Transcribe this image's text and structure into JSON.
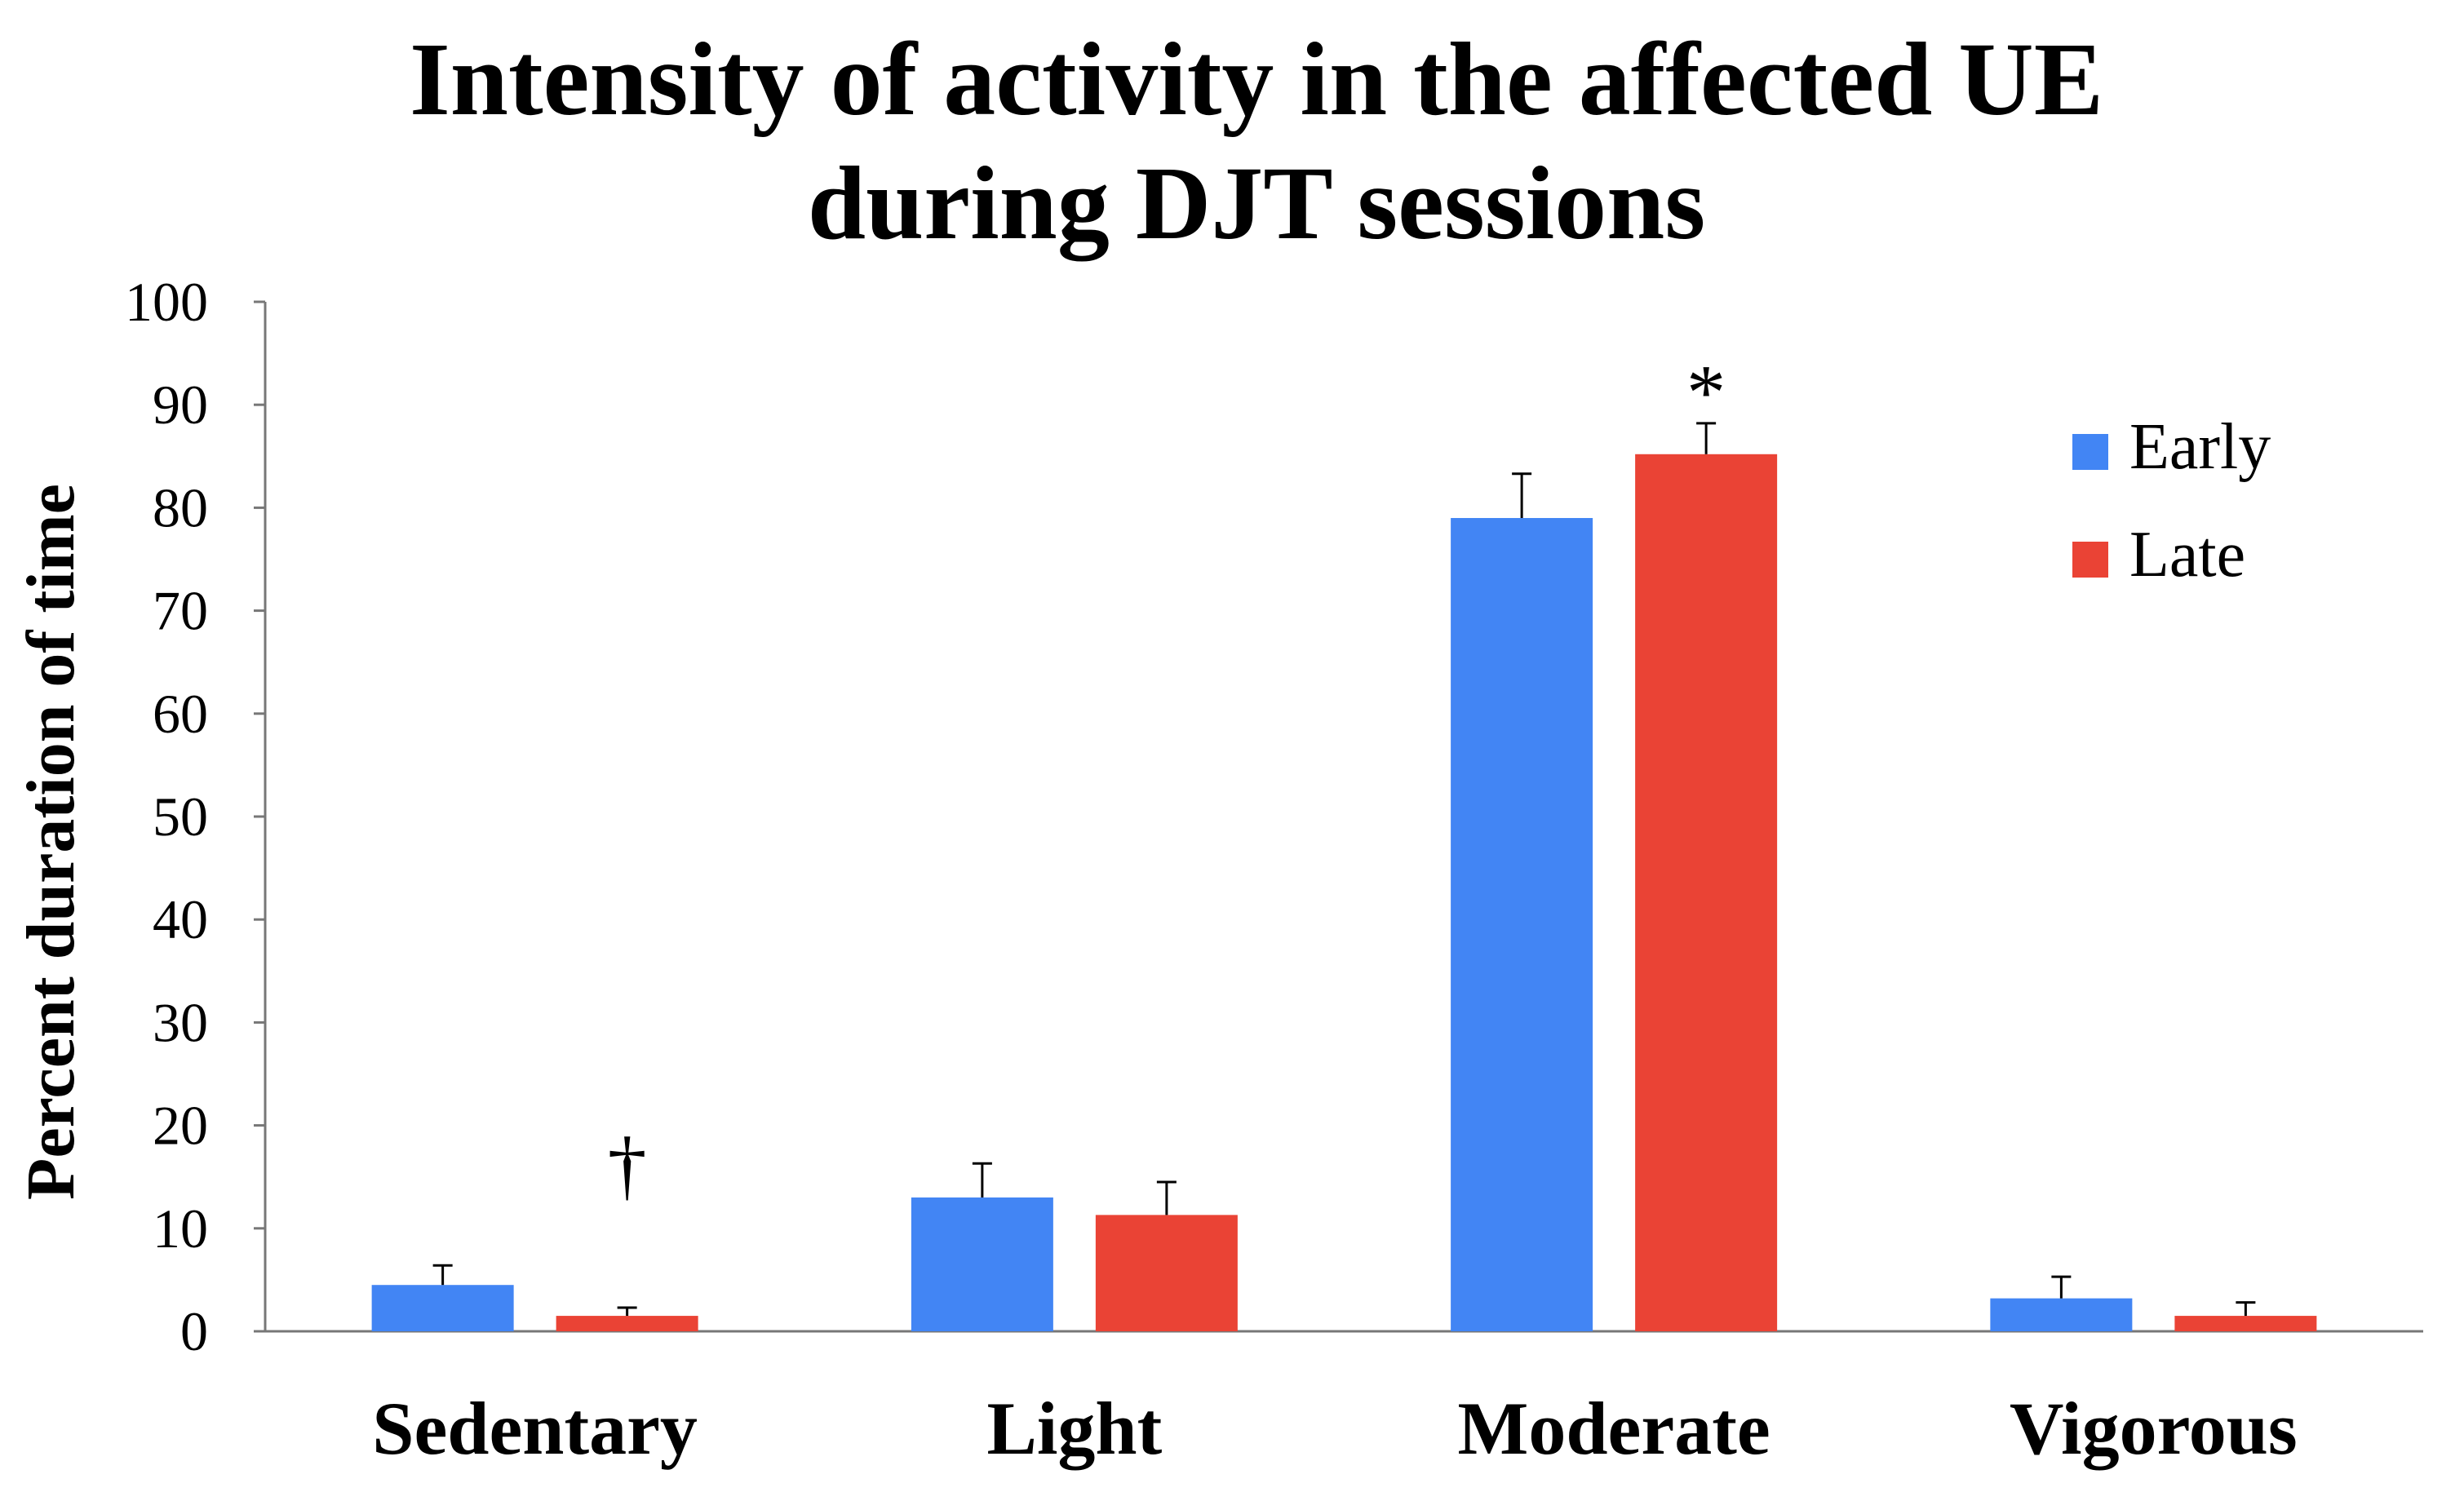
{
  "chart_data": {
    "type": "bar",
    "title": [
      "Intensity of activity in the affected UE",
      "during DJT sessions"
    ],
    "xlabel": "",
    "ylabel": "Percent duration of time",
    "ylim": [
      0,
      100
    ],
    "yticks": [
      0,
      10,
      20,
      30,
      40,
      50,
      60,
      70,
      80,
      90,
      100
    ],
    "categories": [
      "Sedentary",
      "Light",
      "Moderate",
      "Vigorous"
    ],
    "series": [
      {
        "name": "Early",
        "color": "#4285F4",
        "values": [
          4.5,
          13,
          79,
          3.2
        ],
        "errors": [
          1.9,
          3.3,
          4.3,
          2.1
        ]
      },
      {
        "name": "Late",
        "color": "#EA4335",
        "values": [
          1.5,
          11.3,
          85.2,
          1.5
        ],
        "errors": [
          0.8,
          3.2,
          3.0,
          1.3
        ]
      }
    ],
    "legend": {
      "position": "right",
      "entries": [
        "Early",
        "Late"
      ]
    },
    "annotations": [
      {
        "text": "†",
        "category": "Sedentary",
        "at_value": 16
      },
      {
        "text": "*",
        "category": "Moderate",
        "at_value": 91
      }
    ],
    "grid": false
  }
}
